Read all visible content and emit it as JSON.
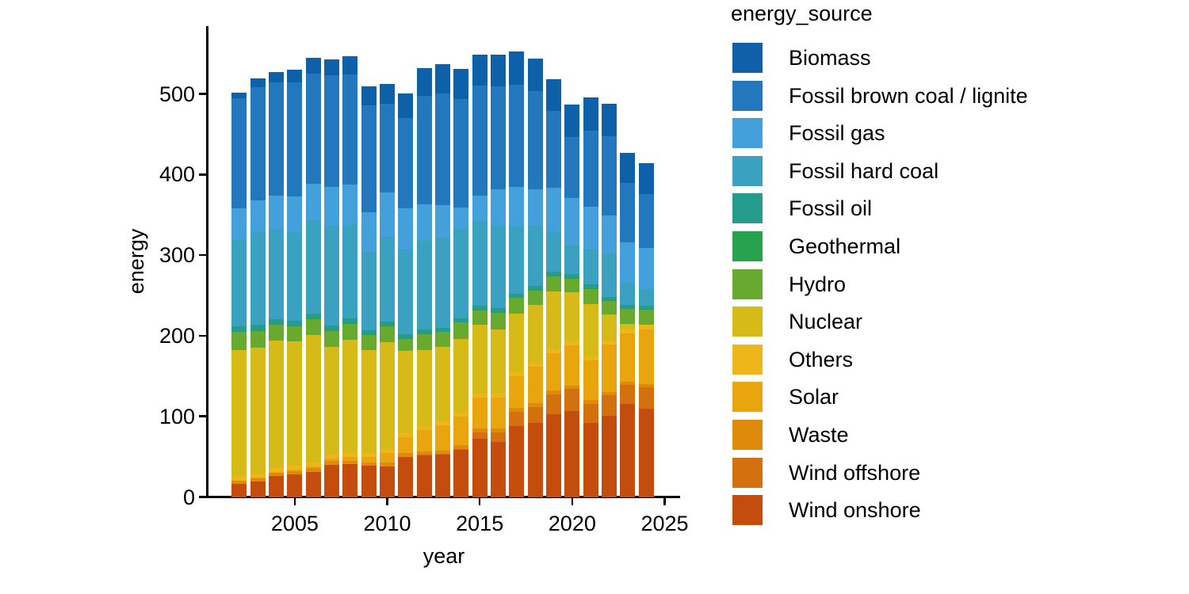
{
  "chart_data": {
    "type": "bar",
    "stacked": true,
    "xlabel": "year",
    "ylabel": "energy",
    "legend_title": "energy_source",
    "legend_position": "right",
    "grid": false,
    "background_color": "#ffffff",
    "axis_color": "#000000",
    "text_color": "#000000",
    "x": [
      2002,
      2003,
      2004,
      2005,
      2006,
      2007,
      2008,
      2009,
      2010,
      2011,
      2012,
      2013,
      2014,
      2015,
      2016,
      2017,
      2018,
      2019,
      2020,
      2021,
      2022,
      2023,
      2024
    ],
    "x_ticks": [
      2005,
      2010,
      2015,
      2020,
      2025
    ],
    "y_ticks": [
      0,
      100,
      200,
      300,
      400,
      500
    ],
    "ylim": [
      0,
      587
    ],
    "xlim": [
      2001.2,
      2025.8
    ],
    "stacking_note": "legend order top-to-bottom equals stack order top-to-bottom; Wind onshore is the bottom segment",
    "series": [
      {
        "name": "Biomass",
        "color": "#0e60a8",
        "values": [
          7,
          10.5,
          12.4,
          15.4,
          18.7,
          19.9,
          21.9,
          22.9,
          24,
          30,
          34,
          36,
          37,
          38.7,
          39.6,
          41.4,
          39.6,
          38.6,
          40.2,
          41.2,
          39.6,
          37.9,
          38
        ]
      },
      {
        "name": "Fossil brown coal / lignite",
        "color": "#2277bd",
        "values": [
          137,
          140,
          140,
          141,
          137,
          138,
          137,
          133,
          110,
          112,
          135,
          138,
          135,
          136,
          128,
          127,
          122,
          96,
          75,
          94,
          98,
          73,
          66
        ]
      },
      {
        "name": "Fossil gas",
        "color": "#44a0da",
        "values": [
          39,
          40,
          41,
          44,
          45,
          48,
          50,
          49,
          55,
          52,
          45,
          40,
          26,
          33,
          45,
          49,
          45,
          55,
          59,
          53,
          47,
          50,
          52
        ]
      },
      {
        "name": "Fossil hard coal",
        "color": "#3aa2c0",
        "values": [
          107,
          115,
          112,
          110,
          116,
          124,
          116,
          97,
          105,
          105,
          110,
          112,
          111,
          104,
          102,
          83,
          75,
          49,
          36,
          44,
          54,
          28,
          20
        ]
      },
      {
        "name": "Fossil oil",
        "color": "#259c8e",
        "values": [
          6.5,
          6.5,
          6.5,
          6.5,
          6,
          6,
          6,
          5.5,
          5,
          5,
          5,
          5,
          5,
          5,
          5,
          5,
          5,
          4.5,
          4.5,
          4.5,
          4.5,
          4,
          4
        ]
      },
      {
        "name": "Geothermal",
        "color": "#28a24e",
        "values": [
          0.2,
          0.2,
          0.2,
          0.2,
          0.2,
          0.2,
          0.2,
          0.2,
          0.2,
          0.2,
          0.2,
          0.2,
          0.2,
          0.2,
          0.2,
          0.2,
          0.2,
          0.2,
          0.2,
          0.2,
          0.2,
          0.2,
          0.2
        ]
      },
      {
        "name": "Hydro",
        "color": "#68aa2f",
        "values": [
          23,
          21,
          20,
          19,
          20,
          21,
          20,
          19,
          20,
          15,
          20,
          19,
          21,
          18,
          21,
          20,
          18,
          20,
          18,
          19,
          17,
          19,
          20
        ]
      },
      {
        "name": "Nuclear",
        "color": "#d6bb18",
        "values": [
          156.3,
          156.9,
          158.4,
          154.6,
          158.7,
          133.2,
          140.9,
          127.7,
          133,
          102.3,
          94.2,
          92.1,
          90.7,
          85.3,
          80,
          72.2,
          71.9,
          71.1,
          60.9,
          65.4,
          32.8,
          6.7,
          0
        ]
      },
      {
        "name": "Others",
        "color": "#edb71c",
        "values": [
          5,
          5,
          5,
          5,
          5,
          5,
          5,
          5,
          5,
          5,
          5,
          5,
          5,
          5,
          5,
          5,
          5,
          5,
          5,
          5,
          5,
          5,
          5
        ]
      },
      {
        "name": "Solar",
        "color": "#e8a50e",
        "values": [
          0.2,
          0.3,
          0.6,
          1.3,
          2.2,
          3.1,
          4.4,
          6.6,
          11.7,
          19.6,
          26.4,
          31,
          36.1,
          38.7,
          38.1,
          39.8,
          45.7,
          46.5,
          49.5,
          49.3,
          58.5,
          59.9,
          68
        ]
      },
      {
        "name": "Waste",
        "color": "#de8a0b",
        "values": [
          4.5,
          4.5,
          4.5,
          4.5,
          4.5,
          4.5,
          4.5,
          4.5,
          4.5,
          4.5,
          4.5,
          4.5,
          4.5,
          4.5,
          4.5,
          4.5,
          4.5,
          4.5,
          4.5,
          4.5,
          4.5,
          4.5,
          4.5
        ]
      },
      {
        "name": "Wind offshore",
        "color": "#d3710e",
        "values": [
          0,
          0,
          0,
          0,
          0,
          0,
          0,
          0,
          0.2,
          0.6,
          0.7,
          0.9,
          1.4,
          8.2,
          12.1,
          17.7,
          19.3,
          24.4,
          27.3,
          24,
          24.8,
          23.5,
          25.7
        ]
      },
      {
        "name": "Wind onshore",
        "color": "#c44d0e",
        "values": [
          15.9,
          18.9,
          25.8,
          27.8,
          30.9,
          39.9,
          40.4,
          38.6,
          38.1,
          49.3,
          51.5,
          52.4,
          58,
          72,
          68.3,
          87.9,
          92.2,
          103,
          106.4,
          91.4,
          101.1,
          115.3,
          110
        ]
      }
    ]
  }
}
